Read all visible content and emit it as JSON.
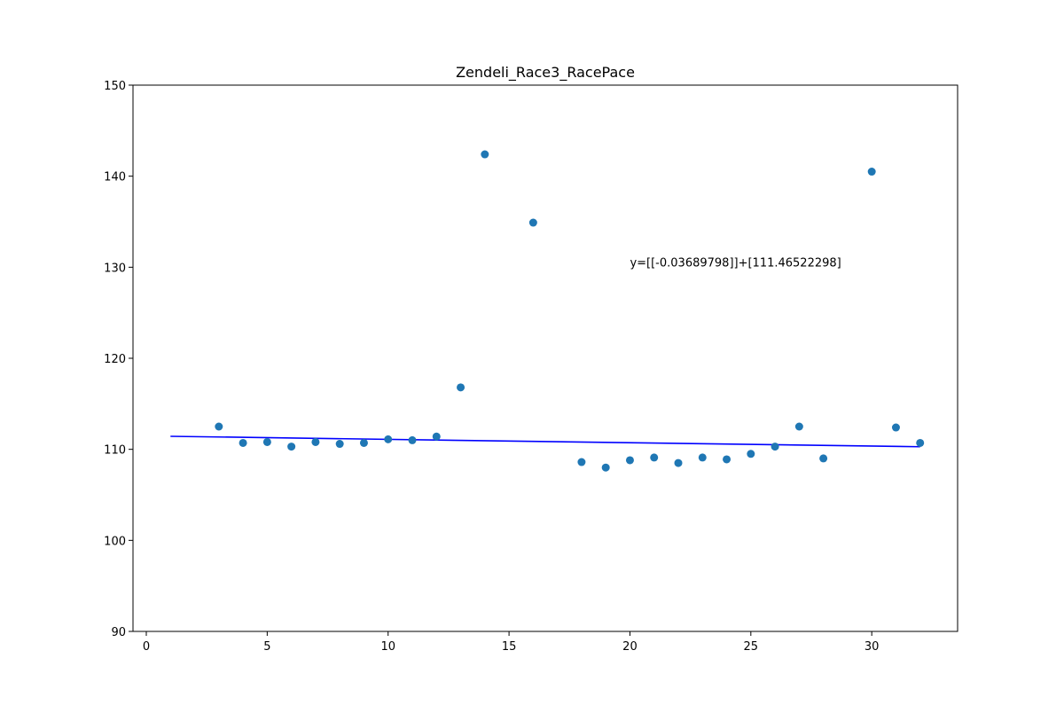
{
  "chart_data": {
    "type": "scatter",
    "title": "Zendeli_Race3_RacePace",
    "xlabel": "",
    "ylabel": "",
    "xlim": [
      -0.55,
      33.55
    ],
    "ylim": [
      90,
      150
    ],
    "x_ticks": [
      0,
      5,
      10,
      15,
      20,
      25,
      30
    ],
    "y_ticks": [
      90,
      100,
      110,
      120,
      130,
      140,
      150
    ],
    "grid": false,
    "series": [
      {
        "kind": "scatter",
        "color": "#1f77b4",
        "points": [
          [
            3,
            112.5
          ],
          [
            4,
            110.7
          ],
          [
            5,
            110.8
          ],
          [
            6,
            110.3
          ],
          [
            7,
            110.8
          ],
          [
            8,
            110.6
          ],
          [
            9,
            110.7
          ],
          [
            10,
            111.1
          ],
          [
            11,
            111.0
          ],
          [
            12,
            111.4
          ],
          [
            13,
            116.8
          ],
          [
            14,
            142.4
          ],
          [
            16,
            134.9
          ],
          [
            18,
            108.6
          ],
          [
            19,
            108.0
          ],
          [
            20,
            108.8
          ],
          [
            21,
            109.1
          ],
          [
            22,
            108.5
          ],
          [
            23,
            109.1
          ],
          [
            24,
            108.9
          ],
          [
            25,
            109.5
          ],
          [
            26,
            110.3
          ],
          [
            27,
            112.5
          ],
          [
            28,
            109.0
          ],
          [
            30,
            140.5
          ],
          [
            31,
            112.4
          ],
          [
            32,
            110.7
          ]
        ]
      },
      {
        "kind": "line",
        "color": "#0000ff",
        "x_range": [
          1,
          32
        ],
        "slope": -0.03689798,
        "intercept": 111.46522298
      }
    ],
    "annotations": [
      {
        "text": "y=[[-0.03689798]]+[111.46522298]",
        "x": 20,
        "y": 130
      }
    ]
  }
}
